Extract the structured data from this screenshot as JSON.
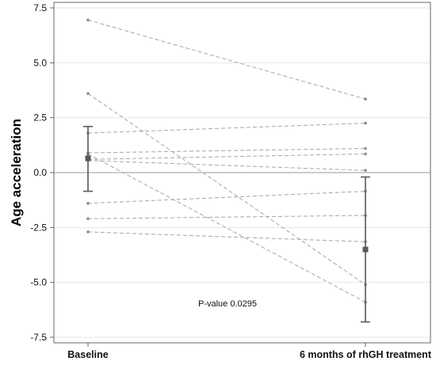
{
  "chart_data": {
    "type": "line",
    "title": "",
    "xlabel": "",
    "ylabel": "Age acceleration",
    "categories": [
      "Baseline",
      "6 months of rhGH treatment"
    ],
    "ylim": [
      -7.5,
      7.5
    ],
    "yticks": [
      7.5,
      5.0,
      2.5,
      0.0,
      -2.5,
      -5.0,
      -7.5
    ],
    "ytick_labels": [
      "7.5",
      "5.0",
      "2.5",
      "0.0",
      "-2.5",
      "-5.0",
      "-7.5"
    ],
    "grid": true,
    "reference_line_y": 0,
    "series": [
      {
        "values": [
          6.95,
          3.35
        ]
      },
      {
        "values": [
          3.6,
          -5.1
        ]
      },
      {
        "values": [
          1.8,
          2.25
        ]
      },
      {
        "values": [
          0.9,
          1.1
        ]
      },
      {
        "values": [
          0.6,
          0.85
        ]
      },
      {
        "values": [
          0.85,
          -5.9
        ]
      },
      {
        "values": [
          0.55,
          0.1
        ]
      },
      {
        "values": [
          -1.4,
          -0.85
        ]
      },
      {
        "values": [
          -2.1,
          -1.95
        ]
      },
      {
        "values": [
          -2.7,
          -3.15
        ]
      }
    ],
    "summary": [
      {
        "category": "Baseline",
        "mean": 0.65,
        "lower": -0.85,
        "upper": 2.1
      },
      {
        "category": "6 months of rhGH treatment",
        "mean": -3.5,
        "lower": -6.8,
        "upper": -0.2
      }
    ],
    "annotation": "P-value 0.0295",
    "colors": {
      "series_line": "#a6a6a6",
      "point": "#8c8c8c",
      "summary": "#595959",
      "grid": "#e6e6e6",
      "axis": "#666666"
    }
  }
}
